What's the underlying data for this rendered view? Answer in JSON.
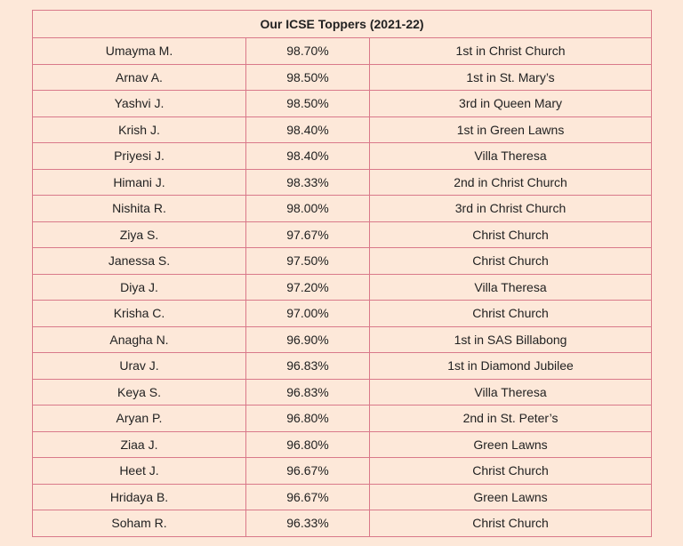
{
  "table": {
    "title": "Our ICSE Toppers (2021-22)",
    "rows": [
      {
        "name": "Umayma M.",
        "percent": "98.70%",
        "note": "1st in Christ Church"
      },
      {
        "name": "Arnav A.",
        "percent": "98.50%",
        "note": "1st in St. Mary’s"
      },
      {
        "name": "Yashvi J.",
        "percent": "98.50%",
        "note": "3rd in Queen Mary"
      },
      {
        "name": "Krish J.",
        "percent": "98.40%",
        "note": "1st in Green Lawns"
      },
      {
        "name": "Priyesi J.",
        "percent": "98.40%",
        "note": "Villa Theresa"
      },
      {
        "name": "Himani J.",
        "percent": "98.33%",
        "note": "2nd in Christ Church"
      },
      {
        "name": "Nishita R.",
        "percent": "98.00%",
        "note": "3rd in Christ Church"
      },
      {
        "name": "Ziya S.",
        "percent": "97.67%",
        "note": "Christ Church"
      },
      {
        "name": "Janessa S.",
        "percent": "97.50%",
        "note": "Christ Church"
      },
      {
        "name": "Diya J.",
        "percent": "97.20%",
        "note": "Villa Theresa"
      },
      {
        "name": "Krisha C.",
        "percent": "97.00%",
        "note": "Christ Church"
      },
      {
        "name": "Anagha N.",
        "percent": "96.90%",
        "note": "1st in SAS Billabong"
      },
      {
        "name": "Urav J.",
        "percent": "96.83%",
        "note": "1st in Diamond Jubilee"
      },
      {
        "name": "Keya S.",
        "percent": "96.83%",
        "note": "Villa Theresa"
      },
      {
        "name": "Aryan P.",
        "percent": "96.80%",
        "note": "2nd in St. Peter’s"
      },
      {
        "name": "Ziaa J.",
        "percent": "96.80%",
        "note": "Green Lawns"
      },
      {
        "name": "Heet J.",
        "percent": "96.67%",
        "note": "Christ Church"
      },
      {
        "name": "Hridaya B.",
        "percent": "96.67%",
        "note": "Green Lawns"
      },
      {
        "name": "Soham R.",
        "percent": "96.33%",
        "note": "Christ Church"
      }
    ]
  },
  "colors": {
    "background": "#fde8d9",
    "border": "#d9798a",
    "text": "#222222"
  }
}
